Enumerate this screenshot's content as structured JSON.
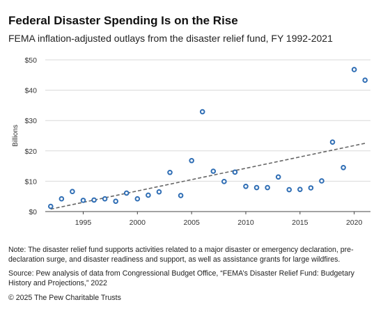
{
  "header": {
    "title": "Federal Disaster Spending Is on the Rise",
    "subtitle": "FEMA inflation-adjusted outlays from the disaster relief fund, FY 1992-2021"
  },
  "footer": {
    "note": "Note: The disaster relief fund supports activities related to a major disaster or emergency declaration, pre-declaration surge, and disaster readiness and support, as well as assistance grants for large wildfires.",
    "source": "Source: Pew analysis of data from Congressional Budget Office, “FEMA’s Disaster Relief Fund: Budgetary History and Projections,” 2022",
    "copyright": "© 2025 The Pew Charitable Trusts"
  },
  "colors": {
    "points": "#2e6db4",
    "trend": "#666666",
    "grid": "#d9d9d9"
  },
  "chart_data": {
    "type": "scatter",
    "ylabel": "Billions",
    "xlim": [
      1991.5,
      2021.5
    ],
    "ylim": [
      0,
      50
    ],
    "xticks": [
      1995,
      2000,
      2005,
      2010,
      2015,
      2020
    ],
    "yticks": [
      0,
      10,
      20,
      30,
      40,
      50
    ],
    "ytick_labels": [
      "$0",
      "$10",
      "$20",
      "$30",
      "$40",
      "$50"
    ],
    "grid": "horizontal",
    "x": [
      1992,
      1993,
      1994,
      1995,
      1996,
      1997,
      1998,
      1999,
      2000,
      2001,
      2002,
      2003,
      2004,
      2005,
      2006,
      2007,
      2008,
      2009,
      2010,
      2011,
      2012,
      2013,
      2014,
      2015,
      2016,
      2017,
      2018,
      2019,
      2020,
      2021
    ],
    "y": [
      1.7,
      4.2,
      6.6,
      3.7,
      3.8,
      4.2,
      3.4,
      6.1,
      4.2,
      5.4,
      6.5,
      12.9,
      5.3,
      16.8,
      32.9,
      13.3,
      9.9,
      13.0,
      8.3,
      7.9,
      7.9,
      11.4,
      7.2,
      7.3,
      7.8,
      10.1,
      22.9,
      14.5,
      46.8,
      43.3
    ],
    "trendline": {
      "style": "dashed",
      "x": [
        1992,
        2021
      ],
      "y": [
        0.8,
        22.5
      ]
    }
  }
}
